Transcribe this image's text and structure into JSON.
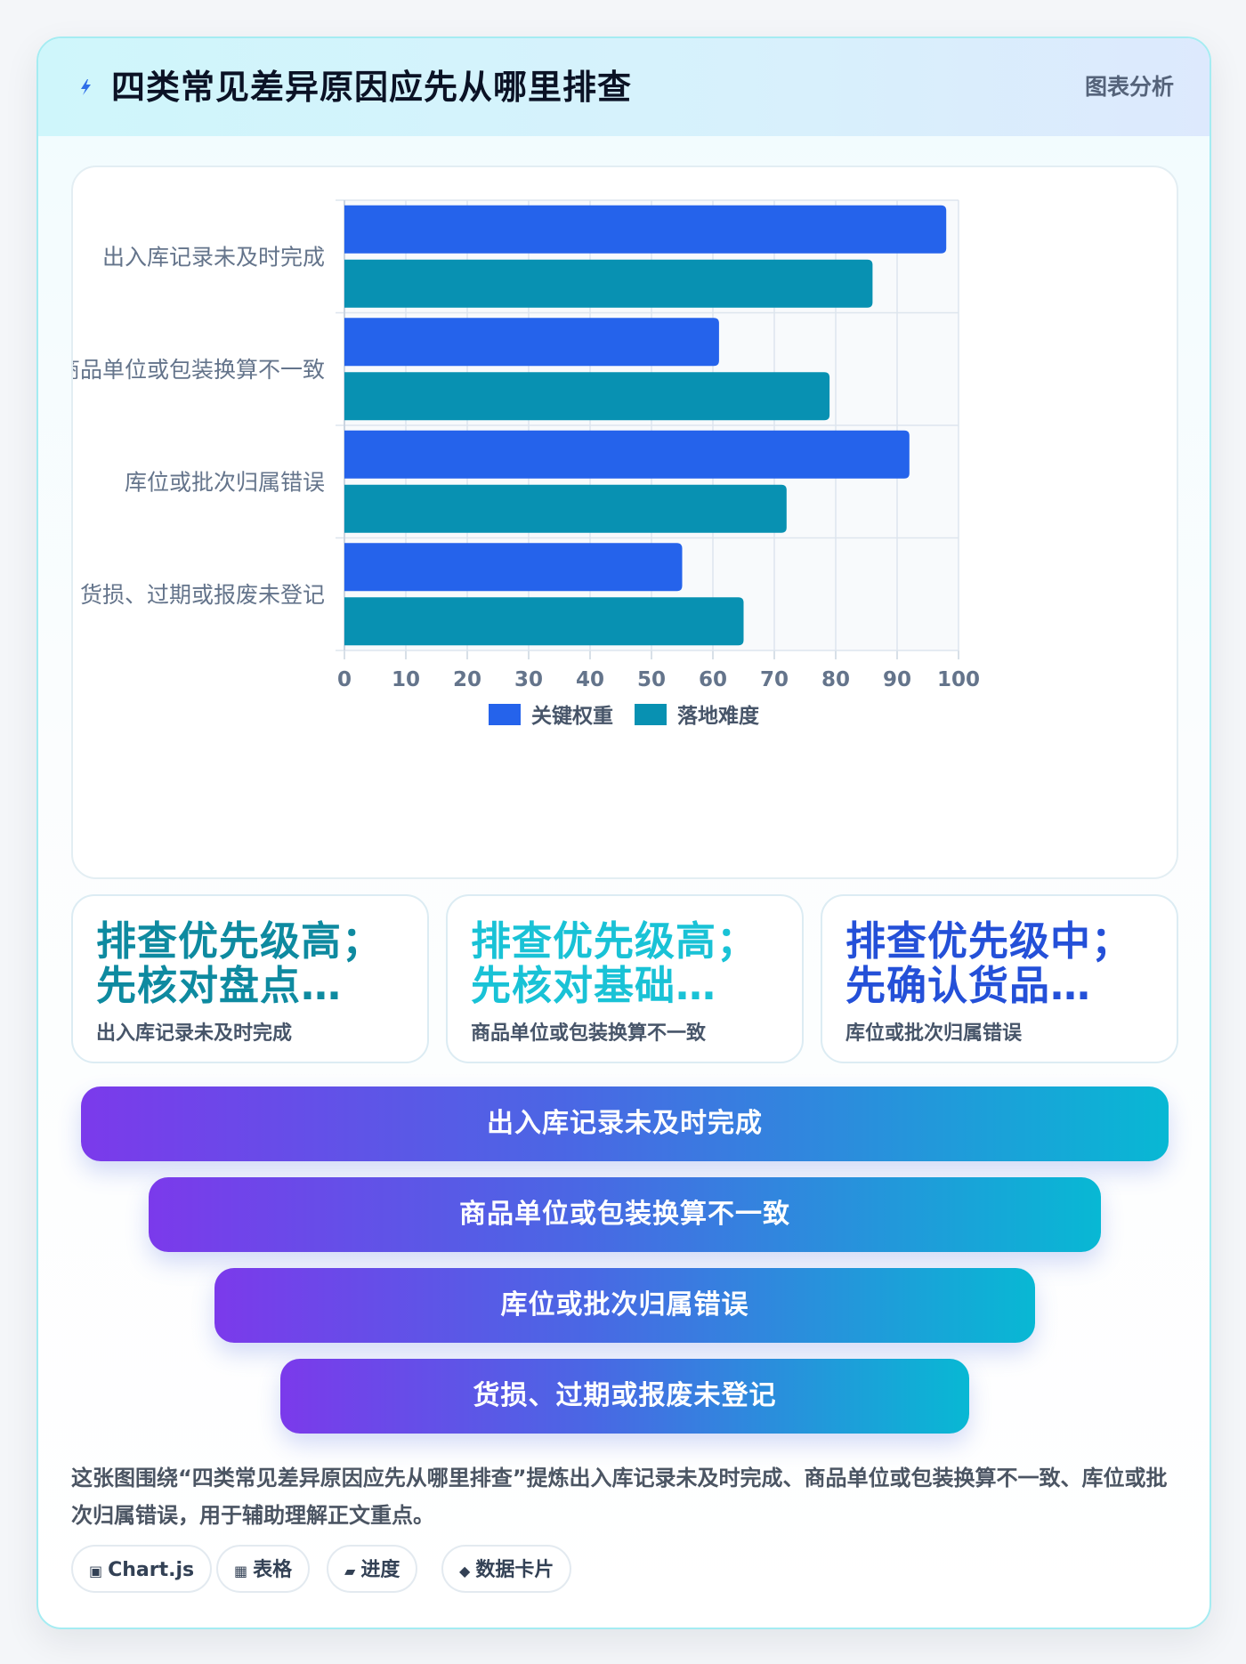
{
  "header": {
    "title": "四类常见差异原因应先从哪里排查",
    "tag": "图表分析"
  },
  "chart_data": {
    "type": "bar",
    "orientation": "horizontal",
    "categories": [
      "出入库记录未及时完成",
      "商品单位或包装换算不一致",
      "库位或批次归属错误",
      "货损、过期或报废未登记"
    ],
    "series": [
      {
        "name": "关键权重",
        "color": "#2563eb",
        "values": [
          98,
          61,
          92,
          55
        ]
      },
      {
        "name": "落地难度",
        "color": "#0891b2",
        "values": [
          86,
          79,
          72,
          65
        ]
      }
    ],
    "xlim": [
      0,
      100
    ],
    "xticks": [
      0,
      10,
      20,
      30,
      40,
      50,
      60,
      70,
      80,
      90,
      100
    ],
    "grid": true,
    "legend": "bottom"
  },
  "kpis": [
    {
      "value": "排查优先级高；先核对盘点…",
      "label": "出入库记录未及时完成",
      "color": "#0e8aa0"
    },
    {
      "value": "排查优先级高；先核对基础…",
      "label": "商品单位或包装换算不一致",
      "color": "#19c2d6"
    },
    {
      "value": "排查优先级中；先确认货品…",
      "label": "库位或批次归属错误",
      "color": "#2450d8"
    }
  ],
  "funnel": [
    "出入库记录未及时完成",
    "商品单位或包装换算不一致",
    "库位或批次归属错误",
    "货损、过期或报废未登记"
  ],
  "description": "这张图围绕“四类常见差异原因应先从哪里排查”提炼出入库记录未及时完成、商品单位或包装换算不一致、库位或批次归属错误，用于辅助理解正文重点。",
  "chips": [
    {
      "icon": "▣",
      "label": "Chart.js"
    },
    {
      "icon": "▦",
      "label": "表格"
    },
    {
      "icon": "▰",
      "label": "进度"
    },
    {
      "icon": "◆",
      "label": "数据卡片"
    }
  ]
}
